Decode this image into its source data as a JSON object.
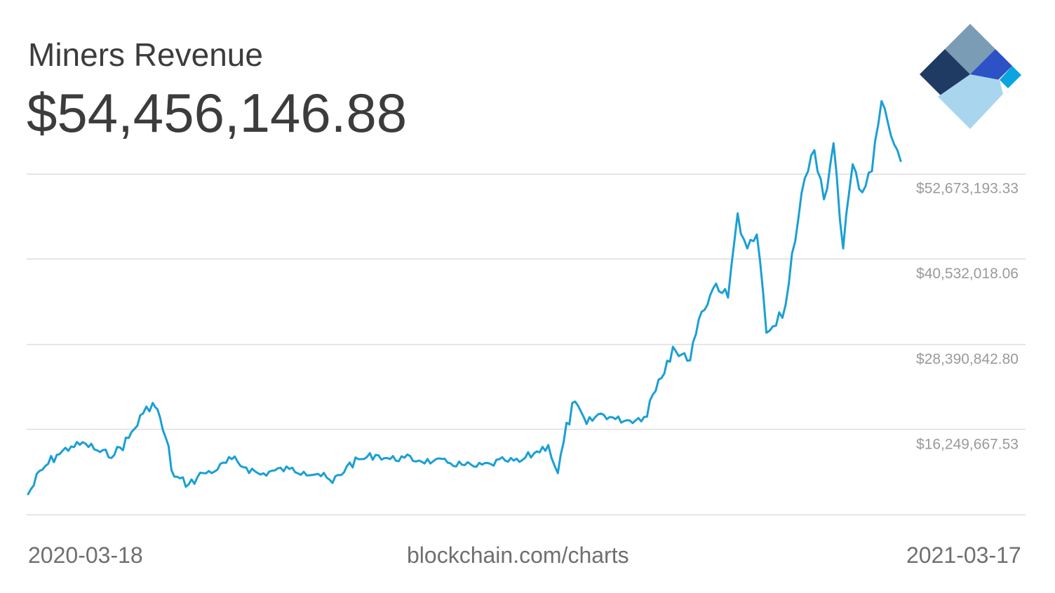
{
  "header": {
    "title": "Miners Revenue",
    "current_value": "$54,456,146.88"
  },
  "footer": {
    "start_date": "2020-03-18",
    "source": "blockchain.com/charts",
    "end_date": "2021-03-17"
  },
  "logo": {
    "icon": "blockchain-diamond-logo-icon",
    "colors": [
      "#7a9cb4",
      "#1f3b63",
      "#2d52c5",
      "#0aa5e0",
      "#a9d6ee"
    ]
  },
  "colors": {
    "line": "#1a9fd5",
    "grid": "#dddddd",
    "text": "#3c3c3c",
    "tick_text": "#9a9a9a"
  },
  "chart_data": {
    "type": "line",
    "title": "Miners Revenue",
    "xlabel": "",
    "ylabel": "",
    "grid": true,
    "y_tick_position": "right",
    "x_range": [
      "2020-03-18",
      "2021-03-17"
    ],
    "ylim": [
      4108492.26,
      64814368.6
    ],
    "y_ticks": [
      16249667.53,
      28390842.8,
      40532018.06,
      52673193.33
    ],
    "y_tick_labels": [
      "$16,249,667.53",
      "$28,390,842.80",
      "$40,532,018.06",
      "$52,673,193.33"
    ],
    "series": [
      {
        "x": [
          "2020-03-18",
          "2020-03-24",
          "2020-03-30",
          "2020-04-05",
          "2020-04-11",
          "2020-04-17",
          "2020-04-23",
          "2020-04-29",
          "2020-05-05",
          "2020-05-09",
          "2020-05-12",
          "2020-05-18",
          "2020-05-24",
          "2020-05-30",
          "2020-06-05",
          "2020-06-11",
          "2020-06-17",
          "2020-06-23",
          "2020-06-29",
          "2020-07-05",
          "2020-07-11",
          "2020-07-17",
          "2020-07-23",
          "2020-07-29",
          "2020-08-04",
          "2020-08-10",
          "2020-08-16",
          "2020-08-22",
          "2020-08-28",
          "2020-09-03",
          "2020-09-09",
          "2020-09-15",
          "2020-09-21",
          "2020-09-27",
          "2020-10-03",
          "2020-10-09",
          "2020-10-15",
          "2020-10-21",
          "2020-10-25",
          "2020-10-31",
          "2020-11-06",
          "2020-11-12",
          "2020-11-18",
          "2020-11-24",
          "2020-11-30",
          "2020-12-06",
          "2020-12-12",
          "2020-12-18",
          "2020-12-24",
          "2020-12-30",
          "2021-01-04",
          "2021-01-08",
          "2021-01-12",
          "2021-01-16",
          "2021-01-20",
          "2021-01-24",
          "2021-01-28",
          "2021-02-01",
          "2021-02-05",
          "2021-02-09",
          "2021-02-13",
          "2021-02-17",
          "2021-02-21",
          "2021-02-25",
          "2021-03-01",
          "2021-03-05",
          "2021-03-09",
          "2021-03-13",
          "2021-03-17"
        ],
        "y": [
          7000000,
          10500000,
          12600000,
          13800000,
          14200000,
          13000000,
          12600000,
          15000000,
          18500000,
          20000000,
          18000000,
          9500000,
          8400000,
          10000000,
          10500000,
          12000000,
          10800000,
          9800000,
          10400000,
          10600000,
          10200000,
          9900000,
          8600000,
          11000000,
          12000000,
          12600000,
          12000000,
          12200000,
          11800000,
          11700000,
          11500000,
          11200000,
          10900000,
          11300000,
          11800000,
          11600000,
          12800000,
          14000000,
          10000000,
          20000000,
          17000000,
          18500000,
          17700000,
          17500000,
          18000000,
          23300000,
          28000000,
          26000000,
          33000000,
          37000000,
          35000000,
          47000000,
          42000000,
          44000000,
          30000000,
          31000000,
          34000000,
          43000000,
          52000000,
          56000000,
          49000000,
          57000000,
          42000000,
          54000000,
          50000000,
          53000000,
          63000000,
          58000000,
          54456146.88
        ]
      }
    ]
  }
}
